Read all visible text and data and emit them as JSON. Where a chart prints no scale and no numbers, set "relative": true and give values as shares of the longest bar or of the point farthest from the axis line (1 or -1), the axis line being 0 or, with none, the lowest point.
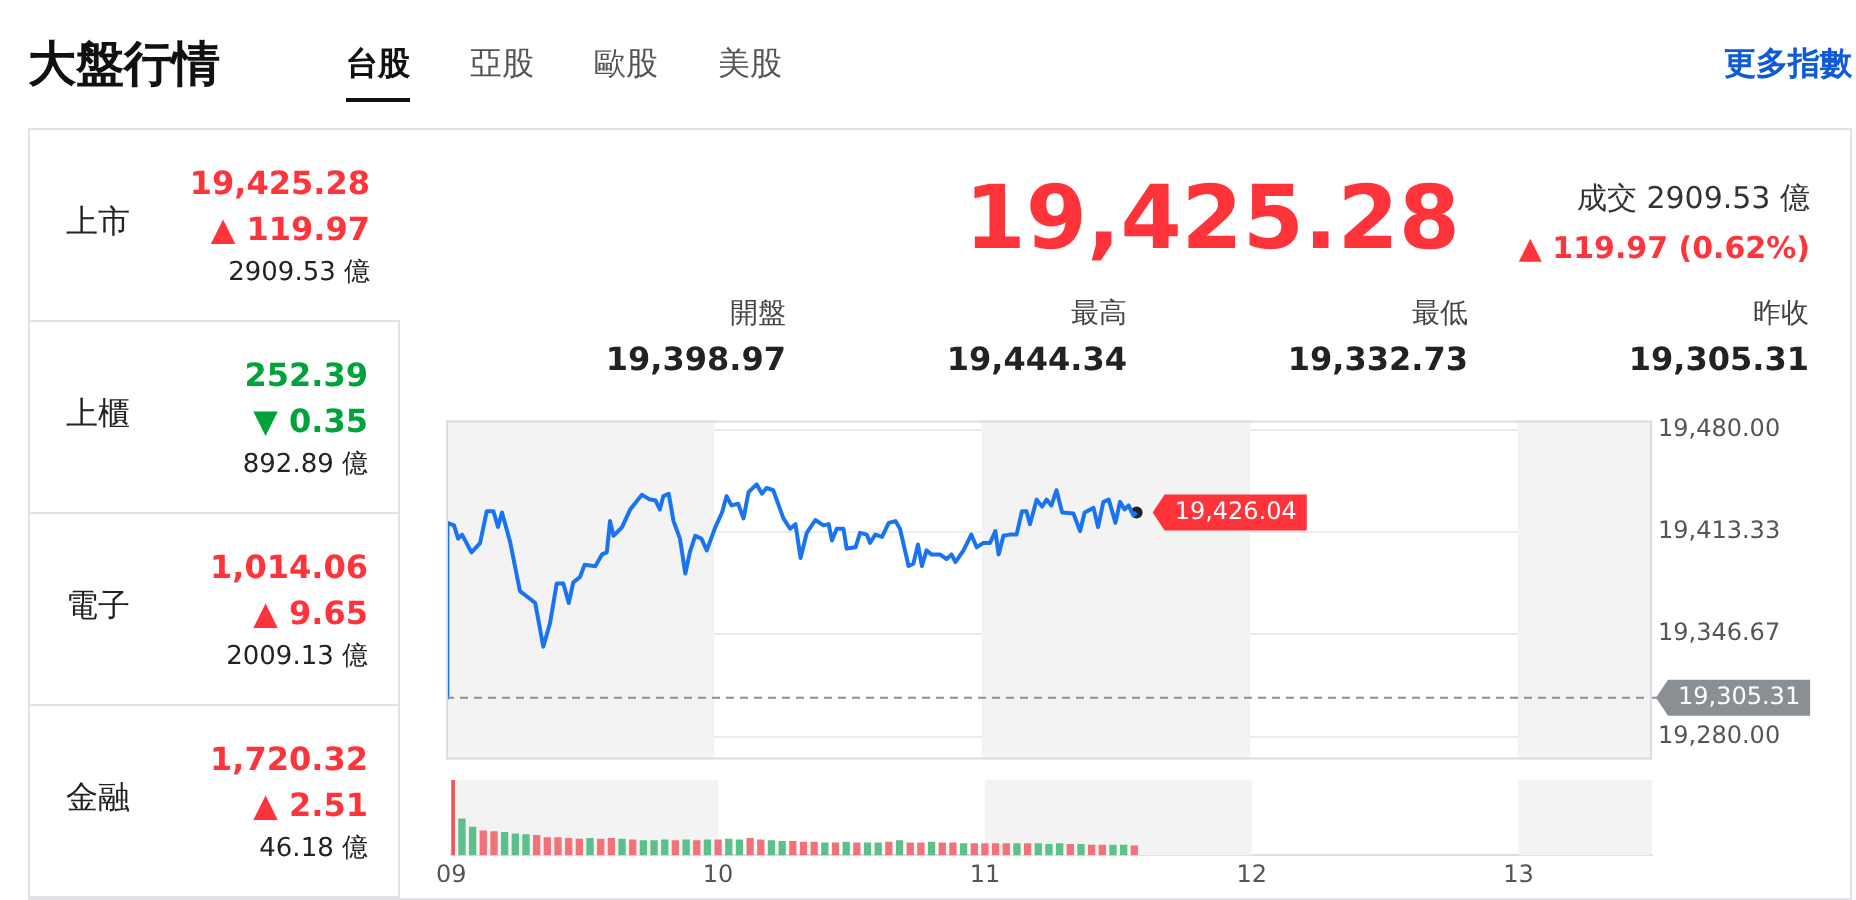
{
  "chart_data": [
    {
      "type": "other",
      "title": "大盤行情",
      "categories": [
        "台股",
        "亞股",
        "歐股",
        "美股"
      ],
      "annotations": [
        "更多指數"
      ]
    },
    {
      "type": "other",
      "categories": [
        "上市",
        "上櫃",
        "電子",
        "金融"
      ],
      "value_labels": [
        "19,425.28",
        "252.39",
        "1,014.06",
        "1,720.32"
      ],
      "colors": [
        "#ff333a",
        "#00a33a",
        "#ff333a",
        "#ff333a"
      ],
      "annotations": [
        "▲ 119.97",
        "2909.53 億",
        "▼ 0.35",
        "892.89 億",
        "▲ 9.65",
        "2009.13 億",
        "▲ 2.51",
        "46.18 億"
      ]
    },
    {
      "type": "other",
      "title": "19,425.28",
      "color": "#ff333a",
      "annotations": [
        "成交 2909.53 億",
        "▲ 119.97 (0.62%)"
      ],
      "categories": [
        "開盤",
        "最高",
        "最低",
        "昨收"
      ],
      "value_labels": [
        "19,398.97",
        "19,444.34",
        "19,332.73",
        "19,305.31"
      ]
    },
    {
      "type": "line",
      "xlim": [
        9,
        13.5
      ],
      "xticks": [
        9,
        10,
        11,
        12,
        13
      ],
      "ylim": [
        19265,
        19486
      ],
      "yticks": [
        {
          "value": 19480,
          "label": "19,480.00"
        },
        {
          "value": 19413.33,
          "label": "19,413.33"
        },
        {
          "value": 19346.67,
          "label": "19,346.67"
        },
        {
          "value": 19280,
          "label": "19,280.00"
        }
      ],
      "tick_labels": "y",
      "grid": "y",
      "legend": false,
      "marker": "none",
      "line_style": "solid",
      "series": [
        {
          "color": "#1a73f0",
          "x": [
            9.0,
            9.005,
            9.03,
            9.045,
            9.06,
            9.095,
            9.127,
            9.152,
            9.177,
            9.194,
            9.209,
            9.239,
            9.276,
            9.319,
            9.333,
            9.363,
            9.388,
            9.413,
            9.438,
            9.458,
            9.475,
            9.5,
            9.517,
            9.557,
            9.582,
            9.6,
            9.612,
            9.625,
            9.657,
            9.687,
            9.731,
            9.761,
            9.781,
            9.798,
            9.811,
            9.831,
            9.849,
            9.873,
            9.893,
            9.91,
            9.93,
            9.953,
            9.973,
            10.005,
            10.03,
            10.047,
            10.065,
            10.09,
            10.11,
            10.129,
            10.159,
            10.179,
            10.196,
            10.221,
            10.259,
            10.284,
            10.304,
            10.323,
            10.346,
            10.378,
            10.408,
            10.428,
            10.44,
            10.458,
            10.483,
            10.495,
            10.528,
            10.545,
            10.57,
            10.582,
            10.602,
            10.627,
            10.652,
            10.677,
            10.694,
            10.726,
            10.744,
            10.761,
            10.776,
            10.793,
            10.811,
            10.843,
            10.868,
            10.886,
            10.901,
            10.931,
            10.96,
            10.98,
            11.005,
            11.03,
            11.05,
            11.062,
            11.08,
            11.104,
            11.129,
            11.149,
            11.166,
            11.179,
            11.204,
            11.224,
            11.241,
            11.259,
            11.278,
            11.299,
            11.341,
            11.366,
            11.383,
            11.416,
            11.433,
            11.453,
            11.473,
            11.498,
            11.515,
            11.532,
            11.547,
            11.565,
            11.577
          ],
          "values": [
            19305.31,
            19419.2,
            19417.6,
            19409,
            19411.6,
            19400,
            19406,
            19426.8,
            19426.8,
            19416.5,
            19426,
            19407,
            19374.8,
            19369,
            19367,
            19338.6,
            19353.8,
            19379.7,
            19379.7,
            19367,
            19380.5,
            19384,
            19391.9,
            19391,
            19398.7,
            19400,
            19420.4,
            19410.8,
            19416.5,
            19427.9,
            19437.5,
            19434.4,
            19434,
            19428,
            19436.7,
            19438.2,
            19420.4,
            19409,
            19386.2,
            19400.2,
            19410.8,
            19409,
            19401.3,
            19416.5,
            19426,
            19436.7,
            19430.6,
            19431.7,
            19422.2,
            19439.3,
            19444.34,
            19438.2,
            19442,
            19440.5,
            19422.2,
            19415.4,
            19418.4,
            19396.4,
            19412.7,
            19421.1,
            19417.6,
            19418.4,
            19407.8,
            19415.4,
            19415.4,
            19402.5,
            19403.3,
            19412.7,
            19411.6,
            19406.2,
            19411.6,
            19410.1,
            19419.2,
            19420.4,
            19415.4,
            19391.1,
            19392.7,
            19405.1,
            19391.1,
            19401.3,
            19398.7,
            19398.7,
            19395.6,
            19398.7,
            19393.7,
            19401.3,
            19411.6,
            19403.3,
            19406.2,
            19406.2,
            19413.9,
            19398.7,
            19410.8,
            19411.6,
            19411.6,
            19426.8,
            19426.8,
            19418.4,
            19434.4,
            19429.8,
            19434.4,
            19430.6,
            19440.5,
            19426,
            19425.3,
            19413.9,
            19426,
            19429,
            19416.5,
            19432.9,
            19434.4,
            19419.2,
            19432.9,
            19428,
            19430.6,
            19424.1,
            19426.04
          ]
        },
        {
          "type": "scatter",
          "color": "#222222",
          "marker": "circle",
          "x": [
            11.577
          ],
          "values": [
            19426.04
          ]
        }
      ],
      "ref_lines": [
        {
          "axis": "y",
          "value": 19305.31,
          "label": "19,305.31",
          "color": "#8a8f94",
          "line_style": "dashed"
        }
      ],
      "bands": [
        {
          "axis": "x",
          "from": 9,
          "to": 10,
          "color": "#f3f3f3"
        },
        {
          "axis": "x",
          "from": 11,
          "to": 12,
          "color": "#f3f3f3"
        },
        {
          "axis": "x",
          "from": 13,
          "to": 13.5,
          "color": "#f3f3f3"
        }
      ],
      "annotations": [
        {
          "text": "19,426.04",
          "x": 11.577,
          "y": 19426.04
        }
      ]
    },
    {
      "type": "bar",
      "relative": true,
      "xlim": [
        9,
        13.5
      ],
      "xticks": [
        {
          "value": 9,
          "label": "09"
        },
        10,
        11,
        12,
        13
      ],
      "tick_labels": "x",
      "legend": false,
      "x": [
        9.0,
        9.04,
        9.08,
        9.12,
        9.16,
        9.2,
        9.24,
        9.28,
        9.32,
        9.36,
        9.4,
        9.44,
        9.48,
        9.52,
        9.56,
        9.6,
        9.64,
        9.68,
        9.72,
        9.76,
        9.8,
        9.84,
        9.88,
        9.92,
        9.96,
        10.0,
        10.04,
        10.08,
        10.12,
        10.16,
        10.2,
        10.24,
        10.28,
        10.32,
        10.36,
        10.4,
        10.44,
        10.48,
        10.52,
        10.56,
        10.6,
        10.64,
        10.68,
        10.72,
        10.76,
        10.8,
        10.84,
        10.88,
        10.92,
        10.96,
        11.0,
        11.04,
        11.08,
        11.12,
        11.16,
        11.2,
        11.24,
        11.28,
        11.32,
        11.36,
        11.4,
        11.44,
        11.48,
        11.52,
        11.56
      ],
      "values": [
        1,
        0.48,
        0.37,
        0.32,
        0.31,
        0.3,
        0.28,
        0.27,
        0.26,
        0.23,
        0.23,
        0.22,
        0.21,
        0.22,
        0.21,
        0.22,
        0.21,
        0.2,
        0.19,
        0.19,
        0.2,
        0.19,
        0.2,
        0.19,
        0.2,
        0.2,
        0.21,
        0.2,
        0.22,
        0.2,
        0.19,
        0.18,
        0.18,
        0.17,
        0.17,
        0.16,
        0.16,
        0.17,
        0.16,
        0.16,
        0.16,
        0.17,
        0.19,
        0.16,
        0.16,
        0.17,
        0.16,
        0.16,
        0.15,
        0.15,
        0.15,
        0.15,
        0.15,
        0.15,
        0.15,
        0.15,
        0.14,
        0.15,
        0.14,
        0.14,
        0.13,
        0.13,
        0.13,
        0.13,
        0.12
      ],
      "colors": [
        "#f2545b",
        "#5cc08a",
        "#5cc08a",
        "#f2727a",
        "#f2727a",
        "#5cc08a",
        "#5cc08a",
        "#5cc08a",
        "#f2727a",
        "#f2727a",
        "#f2727a",
        "#f2727a",
        "#f2727a",
        "#5cc08a",
        "#f2727a",
        "#f2727a",
        "#5cc08a",
        "#f2727a",
        "#5cc08a",
        "#5cc08a",
        "#5cc08a",
        "#f2727a",
        "#5cc08a",
        "#f2727a",
        "#5cc08a",
        "#f2727a",
        "#5cc08a",
        "#5cc08a",
        "#f2727a",
        "#f2727a",
        "#5cc08a",
        "#5cc08a",
        "#f2727a",
        "#f2727a",
        "#f2727a",
        "#5cc08a",
        "#f2727a",
        "#5cc08a",
        "#f2727a",
        "#5cc08a",
        "#5cc08a",
        "#f2727a",
        "#5cc08a",
        "#f2727a",
        "#f2727a",
        "#5cc08a",
        "#f2727a",
        "#f2727a",
        "#5cc08a",
        "#f2727a",
        "#f2727a",
        "#f2727a",
        "#f2727a",
        "#5cc08a",
        "#f2727a",
        "#5cc08a",
        "#5cc08a",
        "#5cc08a",
        "#f2727a",
        "#5cc08a",
        "#f2727a",
        "#f2727a",
        "#5cc08a",
        "#5cc08a",
        "#f2727a"
      ],
      "bands": [
        {
          "axis": "x",
          "from": 9,
          "to": 10,
          "color": "#f3f3f3"
        },
        {
          "axis": "x",
          "from": 11,
          "to": 12,
          "color": "#f3f3f3"
        },
        {
          "axis": "x",
          "from": 13,
          "to": 13.5,
          "color": "#f3f3f3"
        }
      ]
    }
  ]
}
